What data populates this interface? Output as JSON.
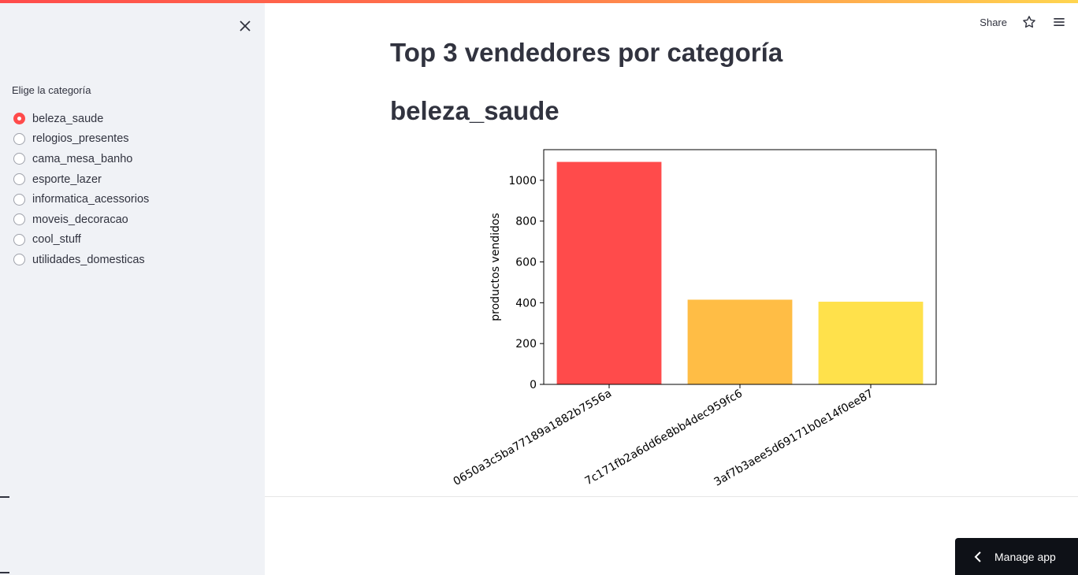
{
  "sidebar": {
    "radio_label": "Elige la categoría",
    "selected_index": 0,
    "options": [
      "beleza_saude",
      "relogios_presentes",
      "cama_mesa_banho",
      "esporte_lazer",
      "informatica_acessorios",
      "moveis_decoracao",
      "cool_stuff",
      "utilidades_domesticas"
    ],
    "close_icon": "close-icon"
  },
  "header": {
    "share_label": "Share",
    "star_icon": "star-icon",
    "menu_icon": "hamburger-menu-icon"
  },
  "main": {
    "title": "Top 3 vendedores por categoría",
    "category_heading": "beleza_saude"
  },
  "manage_app": {
    "label": "Manage app",
    "icon": "chevron-left-icon"
  },
  "chart_data": {
    "type": "bar",
    "categories": [
      "0650a3c5ba77189a1882b7556a",
      "7c171fb2a6dd6e8bb4dec959fc6",
      "3af7b3aee5d69171b0e14f0ee87"
    ],
    "values": [
      1090,
      415,
      405
    ],
    "colors": [
      "#ff4b4b",
      "#ffbd45",
      "#ffe14b"
    ],
    "ylabel": "productos vendidos",
    "xlabel": "",
    "ylim": [
      0,
      1150
    ],
    "yticks": [
      0,
      200,
      400,
      600,
      800,
      1000
    ],
    "grid": false
  }
}
